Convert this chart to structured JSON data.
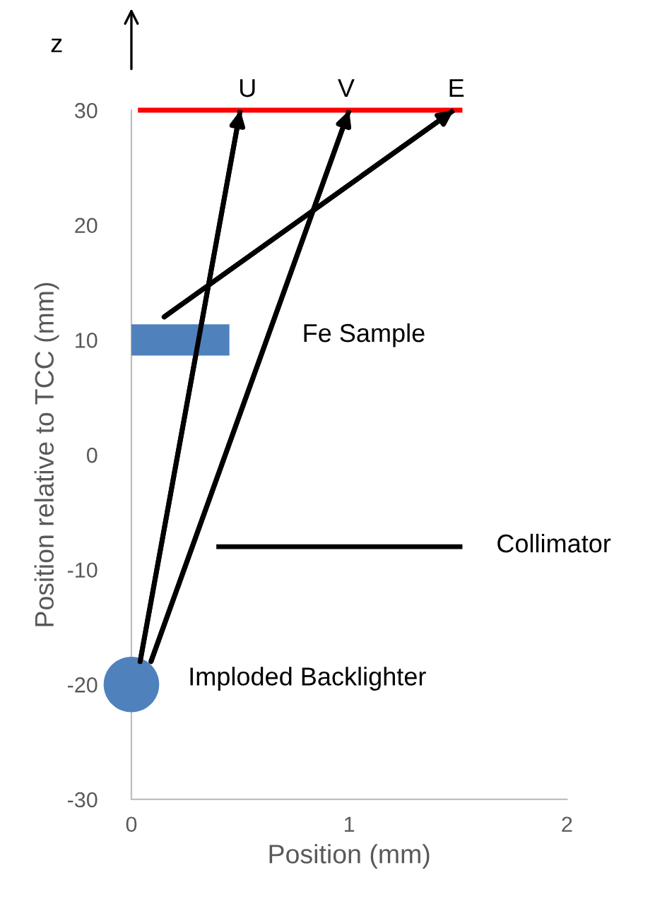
{
  "chart_data": {
    "type": "line",
    "xlabel": "Position (mm)",
    "ylabel": "Position relative to TCC (mm)",
    "xlim": [
      0,
      2
    ],
    "xticks": [
      0,
      1,
      2
    ],
    "ylim": [
      -30,
      30
    ],
    "yticks": [
      -30,
      -20,
      -10,
      0,
      10,
      20,
      30
    ],
    "grid": false,
    "legend": false,
    "series": [
      {
        "color": "#ff0000",
        "x": [
          0.03,
          1.52
        ],
        "values": [
          30,
          30
        ]
      },
      {
        "color": "#000000",
        "x": [
          0.04,
          0.5
        ],
        "values": [
          -18,
          30
        ]
      },
      {
        "color": "#000000",
        "x": [
          0.09,
          1.0
        ],
        "values": [
          -18,
          30
        ]
      },
      {
        "color": "#000000",
        "x": [
          0.15,
          1.48
        ],
        "values": [
          12,
          30
        ]
      },
      {
        "color": "#4f81bd",
        "x": [
          0.0,
          0.45
        ],
        "values": [
          10,
          10
        ]
      },
      {
        "color": "#000000",
        "x": [
          0.39,
          1.52
        ],
        "values": [
          -8,
          -8
        ]
      },
      {
        "type": "scatter",
        "color": "#4f81bd",
        "x": [
          0.0
        ],
        "values": [
          -20
        ],
        "marker": "circle"
      }
    ],
    "annotations": [
      "U",
      "V",
      "E",
      "Fe Sample",
      "Collimator",
      "Imploded Backlighter",
      "z"
    ]
  }
}
